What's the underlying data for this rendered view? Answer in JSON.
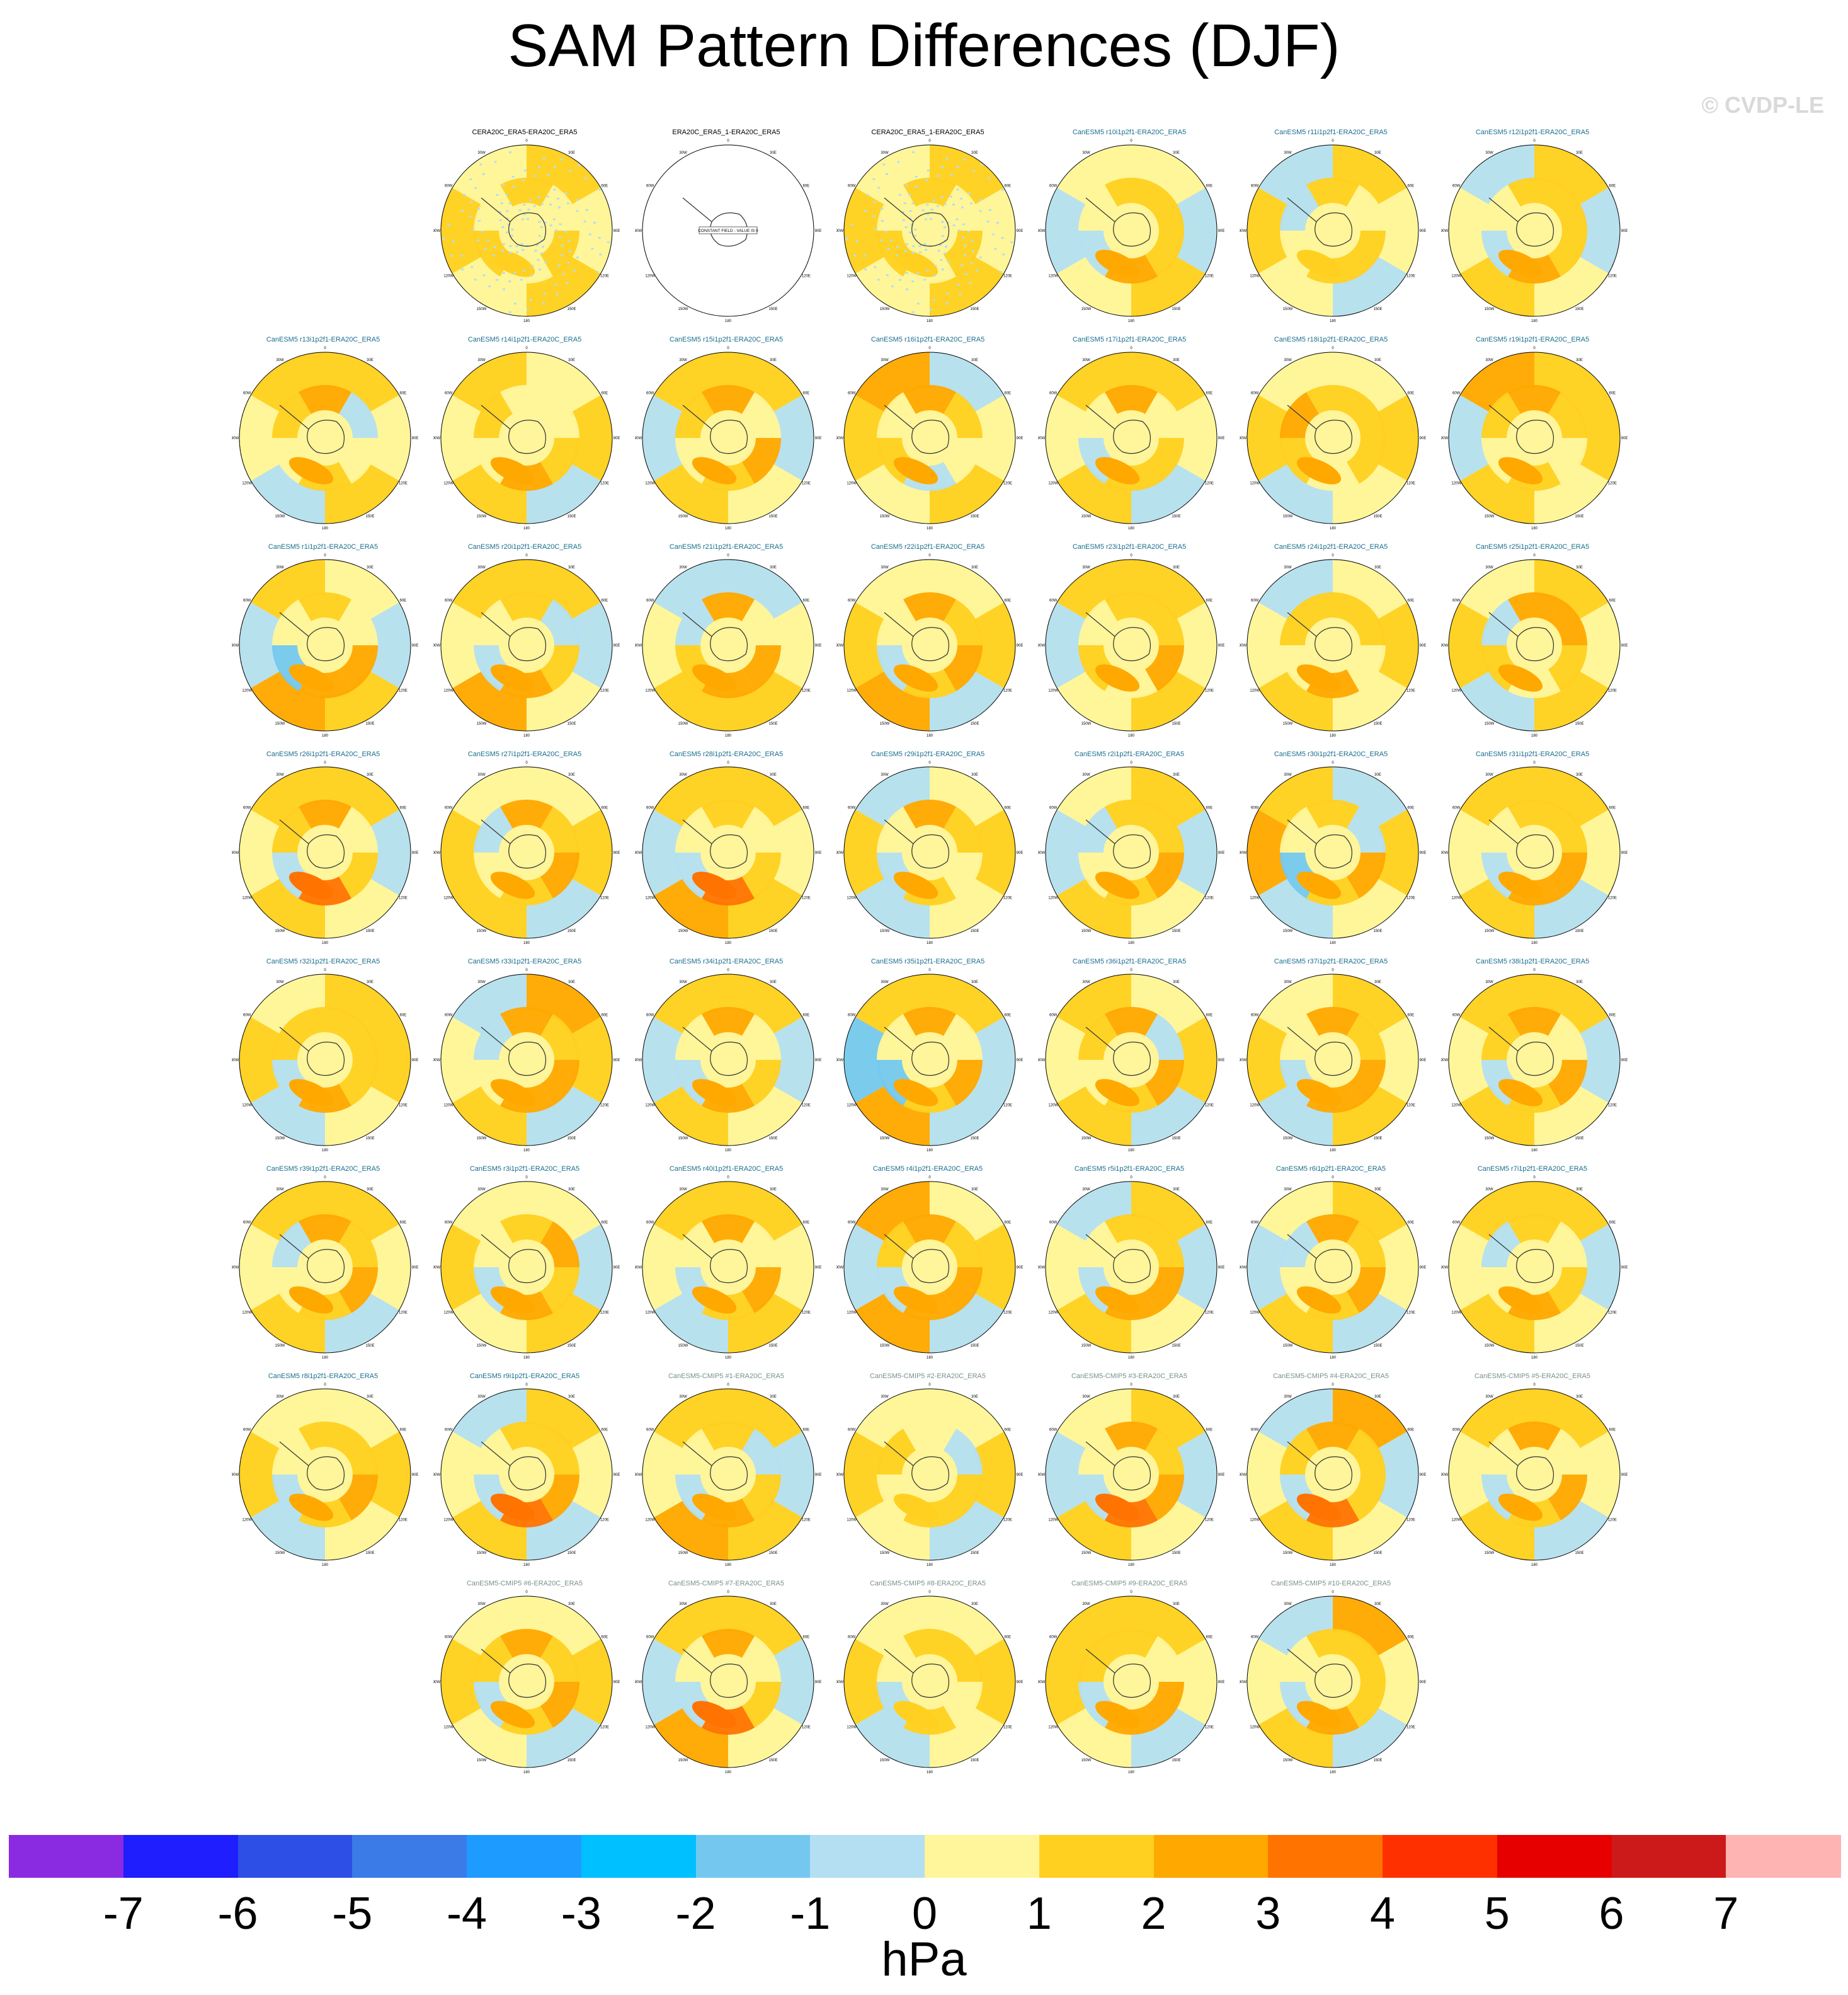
{
  "title": "SAM Pattern Differences (DJF)",
  "watermark": "© CVDP-LE",
  "units": "hPa",
  "colors": {
    "title_obs": "#000000",
    "title_member": "#1a6e8e",
    "title_cmip": "#7a8f8f",
    "land_outline": "#333333"
  },
  "chart_data": {
    "type": "heatmap",
    "title": "SAM Pattern Differences (DJF)",
    "projection": "south polar stereographic",
    "units": "hPa",
    "colorbar": {
      "levels": [
        -7,
        -6,
        -5,
        -4,
        -3,
        -2,
        -1,
        0,
        1,
        2,
        3,
        4,
        5,
        6,
        7
      ],
      "colors": [
        "#8a2be2",
        "#1e1eff",
        "#2e4fe6",
        "#3a7be8",
        "#1e9bff",
        "#00c0ff",
        "#74c8f0",
        "#b4dff2",
        "#fff59a",
        "#ffd020",
        "#ffa800",
        "#ff7300",
        "#ff3000",
        "#e60000",
        "#cc1a1a",
        "#ffb4b4"
      ]
    },
    "longitude_labels": [
      "0",
      "30E",
      "60E",
      "90E",
      "120E",
      "150E",
      "180",
      "150W",
      "120W",
      "90W",
      "60W",
      "30W"
    ],
    "panels": [
      {
        "title": "CERA20C_ERA5-ERA20C_ERA5",
        "group": "obs",
        "style": "speckled",
        "cells": [
          1,
          0,
          1,
          0,
          1,
          0,
          0,
          1,
          0,
          1,
          0,
          1
        ]
      },
      {
        "title": "ERA20C_ERA5_1-ERA20C_ERA5",
        "group": "obs",
        "style": "constant",
        "note": "CONSTANT FIELD - VALUE IS 0"
      },
      {
        "title": "CERA20C_ERA5_1-ERA20C_ERA5",
        "group": "obs",
        "style": "speckled",
        "cells": [
          1,
          0,
          1,
          0,
          1,
          0,
          0,
          1,
          0,
          1,
          0,
          1
        ]
      },
      {
        "title": "CanESM5 r10i1p2f1-ERA20C_ERA5",
        "group": "member",
        "cells": [
          0,
          -1,
          1,
          0,
          -1,
          0,
          1,
          1,
          2,
          -1,
          0,
          1
        ]
      },
      {
        "title": "CanESM5 r11i1p2f1-ERA20C_ERA5",
        "group": "member",
        "cells": [
          1,
          0,
          -1,
          0,
          1,
          -1,
          0,
          1,
          1,
          0,
          -1,
          1
        ]
      },
      {
        "title": "CanESM5 r12i1p2f1-ERA20C_ERA5",
        "group": "member",
        "cells": [
          1,
          -1,
          0,
          1,
          0,
          -1,
          1,
          1,
          2,
          -1,
          0,
          1
        ]
      },
      {
        "title": "CanESM5 r13i1p2f1-ERA20C_ERA5",
        "group": "member",
        "cells": [
          1,
          0,
          1,
          -1,
          0,
          1,
          -1,
          0,
          1,
          0,
          1,
          2
        ]
      },
      {
        "title": "CanESM5 r14i1p2f1-ERA20C_ERA5",
        "group": "member",
        "cells": [
          0,
          1,
          -1,
          1,
          0,
          1,
          0,
          1,
          2,
          0,
          1,
          0
        ]
      },
      {
        "title": "CanESM5 r15i1p2f1-ERA20C_ERA5",
        "group": "member",
        "cells": [
          1,
          -1,
          0,
          1,
          -1,
          1,
          0,
          2,
          1,
          0,
          1,
          2
        ]
      },
      {
        "title": "CanESM5 r16i1p2f1-ERA20C_ERA5",
        "group": "member",
        "cells": [
          -1,
          0,
          1,
          0,
          1,
          2,
          1,
          0,
          -1,
          1,
          0,
          2
        ]
      },
      {
        "title": "CanESM5 r17i1p2f1-ERA20C_ERA5",
        "group": "member",
        "cells": [
          1,
          0,
          -1,
          1,
          0,
          1,
          0,
          1,
          1,
          -1,
          0,
          2
        ]
      },
      {
        "title": "CanESM5 r18i1p2f1-ERA20C_ERA5",
        "group": "member",
        "cells": [
          0,
          1,
          0,
          -1,
          1,
          0,
          1,
          1,
          0,
          1,
          2,
          1
        ]
      },
      {
        "title": "CanESM5 r19i1p2f1-ERA20C_ERA5",
        "group": "member",
        "cells": [
          1,
          1,
          0,
          1,
          -1,
          2,
          1,
          0,
          1,
          0,
          1,
          2
        ]
      },
      {
        "title": "CanESM5 r1i1p2f1-ERA20C_ERA5",
        "group": "member",
        "cells": [
          0,
          -1,
          1,
          2,
          -1,
          1,
          0,
          2,
          2,
          -2,
          0,
          1
        ]
      },
      {
        "title": "CanESM5 r20i1p2f1-ERA20C_ERA5",
        "group": "member",
        "cells": [
          1,
          -1,
          0,
          2,
          0,
          1,
          -1,
          1,
          2,
          -1,
          0,
          1
        ]
      },
      {
        "title": "CanESM5 r21i1p2f1-ERA20C_ERA5",
        "group": "member",
        "cells": [
          -1,
          0,
          1,
          1,
          0,
          -1,
          0,
          2,
          2,
          1,
          -1,
          2
        ]
      },
      {
        "title": "CanESM5 r22i1p2f1-ERA20C_ERA5",
        "group": "member",
        "cells": [
          0,
          1,
          -1,
          2,
          1,
          0,
          1,
          2,
          1,
          -1,
          0,
          2
        ]
      },
      {
        "title": "CanESM5 r23i1p2f1-ERA20C_ERA5",
        "group": "member",
        "cells": [
          1,
          0,
          1,
          0,
          -1,
          1,
          1,
          2,
          0,
          1,
          0,
          1
        ]
      },
      {
        "title": "CanESM5 r24i1p2f1-ERA20C_ERA5",
        "group": "member",
        "cells": [
          0,
          1,
          0,
          1,
          0,
          -1,
          1,
          0,
          2,
          0,
          1,
          1
        ]
      },
      {
        "title": "CanESM5 r25i1p2f1-ERA20C_ERA5",
        "group": "member",
        "cells": [
          1,
          0,
          1,
          -1,
          1,
          0,
          2,
          1,
          0,
          1,
          -1,
          2
        ]
      },
      {
        "title": "CanESM5 r26i1p2f1-ERA20C_ERA5",
        "group": "member",
        "cells": [
          1,
          -1,
          0,
          1,
          0,
          1,
          0,
          1,
          3,
          -1,
          1,
          2
        ]
      },
      {
        "title": "CanESM5 r27i1p2f1-ERA20C_ERA5",
        "group": "member",
        "cells": [
          0,
          1,
          -1,
          1,
          1,
          0,
          1,
          2,
          1,
          0,
          -1,
          2
        ]
      },
      {
        "title": "CanESM5 r28i1p2f1-ERA20C_ERA5",
        "group": "member",
        "cells": [
          1,
          0,
          1,
          2,
          -1,
          1,
          0,
          1,
          3,
          -1,
          0,
          1
        ]
      },
      {
        "title": "CanESM5 r29i1p2f1-ERA20C_ERA5",
        "group": "member",
        "cells": [
          0,
          1,
          0,
          -1,
          1,
          -1,
          1,
          0,
          1,
          -1,
          0,
          2
        ]
      },
      {
        "title": "CanESM5 r2i1p2f1-ERA20C_ERA5",
        "group": "member",
        "cells": [
          1,
          -1,
          0,
          1,
          -1,
          0,
          1,
          2,
          1,
          0,
          -1,
          1
        ]
      },
      {
        "title": "CanESM5 r30i1p2f1-ERA20C_ERA5",
        "group": "member",
        "cells": [
          -1,
          1,
          0,
          -1,
          2,
          1,
          -1,
          2,
          1,
          -2,
          0,
          1
        ]
      },
      {
        "title": "CanESM5 r31i1p2f1-ERA20C_ERA5",
        "group": "member",
        "cells": [
          1,
          0,
          -1,
          1,
          0,
          1,
          1,
          2,
          2,
          -1,
          0,
          1
        ]
      },
      {
        "title": "CanESM5 r32i1p2f1-ERA20C_ERA5",
        "group": "member",
        "cells": [
          1,
          1,
          0,
          -1,
          1,
          0,
          1,
          1,
          2,
          -1,
          1,
          1
        ]
      },
      {
        "title": "CanESM5 r33i1p2f1-ERA20C_ERA5",
        "group": "member",
        "cells": [
          2,
          1,
          -1,
          1,
          0,
          -1,
          1,
          2,
          2,
          0,
          -1,
          2
        ]
      },
      {
        "title": "CanESM5 r34i1p2f1-ERA20C_ERA5",
        "group": "member",
        "cells": [
          1,
          -1,
          0,
          1,
          -1,
          1,
          0,
          1,
          2,
          -1,
          0,
          2
        ]
      },
      {
        "title": "CanESM5 r35i1p2f1-ERA20C_ERA5",
        "group": "member",
        "cells": [
          1,
          -1,
          -1,
          2,
          -2,
          1,
          0,
          2,
          1,
          -2,
          0,
          2
        ]
      },
      {
        "title": "CanESM5 r36i1p2f1-ERA20C_ERA5",
        "group": "member",
        "cells": [
          0,
          1,
          -1,
          1,
          0,
          1,
          -1,
          2,
          1,
          0,
          1,
          2
        ]
      },
      {
        "title": "CanESM5 r37i1p2f1-ERA20C_ERA5",
        "group": "member",
        "cells": [
          1,
          0,
          1,
          -1,
          1,
          0,
          1,
          2,
          2,
          -1,
          0,
          2
        ]
      },
      {
        "title": "CanESM5 r38i1p2f1-ERA20C_ERA5",
        "group": "member",
        "cells": [
          1,
          -1,
          0,
          1,
          0,
          1,
          0,
          2,
          1,
          -1,
          1,
          2
        ]
      },
      {
        "title": "CanESM5 r39i1p2f1-ERA20C_ERA5",
        "group": "member",
        "cells": [
          1,
          0,
          -1,
          1,
          0,
          1,
          1,
          2,
          1,
          0,
          -1,
          2
        ]
      },
      {
        "title": "CanESM5 r3i1p2f1-ERA20C_ERA5",
        "group": "member",
        "cells": [
          0,
          -1,
          1,
          0,
          1,
          0,
          2,
          1,
          2,
          -1,
          0,
          1
        ]
      },
      {
        "title": "CanESM5 r40i1p2f1-ERA20C_ERA5",
        "group": "member",
        "cells": [
          1,
          0,
          1,
          -1,
          0,
          1,
          0,
          2,
          1,
          -1,
          0,
          2
        ]
      },
      {
        "title": "CanESM5 r4i1p2f1-ERA20C_ERA5",
        "group": "member",
        "cells": [
          0,
          1,
          -1,
          2,
          -1,
          2,
          1,
          2,
          2,
          -1,
          1,
          2
        ]
      },
      {
        "title": "CanESM5 r5i1p2f1-ERA20C_ERA5",
        "group": "member",
        "cells": [
          1,
          -1,
          0,
          1,
          0,
          -1,
          1,
          2,
          2,
          -1,
          0,
          1
        ]
      },
      {
        "title": "CanESM5 r6i1p2f1-ERA20C_ERA5",
        "group": "member",
        "cells": [
          1,
          0,
          -1,
          1,
          -1,
          0,
          1,
          2,
          1,
          0,
          -1,
          2
        ]
      },
      {
        "title": "CanESM5 r7i1p2f1-ERA20C_ERA5",
        "group": "member",
        "cells": [
          1,
          -1,
          0,
          1,
          0,
          1,
          0,
          1,
          2,
          0,
          -1,
          1
        ]
      },
      {
        "title": "CanESM5 r8i1p2f1-ERA20C_ERA5",
        "group": "member",
        "cells": [
          0,
          1,
          0,
          -1,
          1,
          0,
          1,
          2,
          1,
          -1,
          0,
          1
        ]
      },
      {
        "title": "CanESM5 r9i1p2f1-ERA20C_ERA5",
        "group": "member",
        "cells": [
          1,
          0,
          -1,
          1,
          0,
          -1,
          1,
          2,
          3,
          -1,
          0,
          1
        ]
      },
      {
        "title": "CanESM5-CMIP5 #1-ERA20C_ERA5",
        "group": "cmip",
        "cells": [
          1,
          -1,
          1,
          2,
          0,
          1,
          -1,
          1,
          2,
          -1,
          0,
          1
        ]
      },
      {
        "title": "CanESM5-CMIP5 #2-ERA20C_ERA5",
        "group": "cmip",
        "cells": [
          0,
          1,
          -1,
          0,
          1,
          0,
          -1,
          1,
          1,
          0,
          1,
          0
        ]
      },
      {
        "title": "CanESM5-CMIP5 #3-ERA20C_ERA5",
        "group": "cmip",
        "cells": [
          1,
          -1,
          0,
          1,
          -1,
          0,
          1,
          2,
          3,
          -1,
          0,
          2
        ]
      },
      {
        "title": "CanESM5-CMIP5 #4-ERA20C_ERA5",
        "group": "cmip",
        "cells": [
          2,
          -1,
          0,
          1,
          0,
          -1,
          1,
          1,
          3,
          -1,
          1,
          2
        ]
      },
      {
        "title": "CanESM5-CMIP5 #5-ERA20C_ERA5",
        "group": "cmip",
        "cells": [
          1,
          0,
          -1,
          1,
          0,
          1,
          0,
          2,
          1,
          -1,
          0,
          2
        ]
      },
      {
        "title": "CanESM5-CMIP5 #6-ERA20C_ERA5",
        "group": "cmip",
        "cells": [
          0,
          1,
          -1,
          0,
          1,
          0,
          1,
          2,
          1,
          -1,
          1,
          2
        ]
      },
      {
        "title": "CanESM5-CMIP5 #7-ERA20C_ERA5",
        "group": "cmip",
        "cells": [
          1,
          -1,
          0,
          2,
          -1,
          1,
          0,
          1,
          3,
          -1,
          0,
          2
        ]
      },
      {
        "title": "CanESM5-CMIP5 #8-ERA20C_ERA5",
        "group": "cmip",
        "cells": [
          0,
          1,
          0,
          -1,
          1,
          0,
          1,
          0,
          1,
          -1,
          0,
          1
        ]
      },
      {
        "title": "CanESM5-CMIP5 #9-ERA20C_ERA5",
        "group": "cmip",
        "cells": [
          1,
          0,
          -1,
          0,
          1,
          1,
          0,
          2,
          2,
          -1,
          1,
          1
        ]
      },
      {
        "title": "CanESM5-CMIP5 #10-ERA20C_ERA5",
        "group": "cmip",
        "cells": [
          2,
          0,
          -1,
          1,
          0,
          -1,
          1,
          1,
          2,
          -1,
          0,
          1
        ]
      }
    ]
  }
}
